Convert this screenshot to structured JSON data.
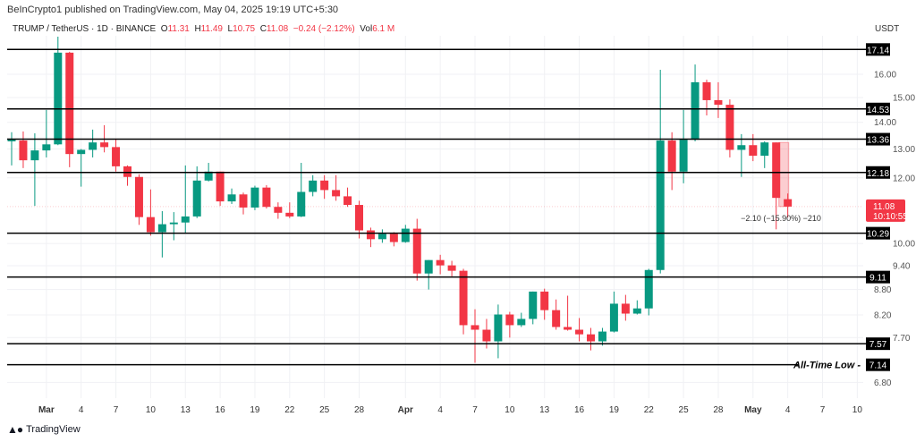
{
  "header": {
    "published": "BeInCrypto1 published on TradingView.com, May 04, 2025 19:19 UTC+5:30",
    "symbol": "TRUMP / TetherUS · 1D · BINANCE",
    "o_label": "O",
    "o": "11.31",
    "h_label": "H",
    "h": "11.49",
    "l_label": "L",
    "l": "10.75",
    "c_label": "C",
    "c": "11.08",
    "change": "−0.24 (−2.12%)",
    "vol_label": "Vol",
    "vol": "6.1 M",
    "currency": "USDT"
  },
  "footer": {
    "brand": "TradingView",
    "logo_text": "17"
  },
  "colors": {
    "up": "#089981",
    "down": "#f23645",
    "level": "#000000"
  },
  "current_price": {
    "value": "11.08",
    "countdown": "10:10:55"
  },
  "measure_label": "−2.10 (−15.90%) −210",
  "chart_data": {
    "type": "candlestick",
    "title": "TRUMP / TetherUS · 1D · BINANCE",
    "ylabel": "USDT",
    "yscale": "log",
    "ylim": [
      6.5,
      18.5
    ],
    "start_date": "2025-02-26",
    "x_ticks": [
      "Mar",
      "4",
      "7",
      "10",
      "13",
      "16",
      "19",
      "22",
      "25",
      "28",
      "Apr",
      "4",
      "7",
      "10",
      "13",
      "16",
      "19",
      "22",
      "25",
      "28",
      "May",
      "4",
      "7",
      "10"
    ],
    "x_tick_days": [
      3,
      6,
      9,
      12,
      15,
      18,
      21,
      24,
      27,
      30,
      34,
      37,
      40,
      43,
      46,
      49,
      52,
      55,
      58,
      61,
      64,
      67,
      70,
      73
    ],
    "y_ticks": [
      "16.00",
      "15.00",
      "14.00",
      "13.00",
      "12.00",
      "10.00",
      "9.40",
      "8.80",
      "8.20",
      "7.70",
      "6.80"
    ],
    "levels": [
      {
        "value": 17.14,
        "label": "17.14"
      },
      {
        "value": 14.53,
        "label": "14.53"
      },
      {
        "value": 13.36,
        "label": "13.36"
      },
      {
        "value": 12.18,
        "label": "12.18"
      },
      {
        "value": 10.29,
        "label": "10.29"
      },
      {
        "value": 9.11,
        "label": "9.11"
      },
      {
        "value": 7.57,
        "label": "7.57"
      },
      {
        "value": 7.14,
        "label": "7.14",
        "annotation": "All-Time Low"
      }
    ],
    "ohlc": [
      [
        13.28,
        13.62,
        12.42,
        13.34
      ],
      [
        13.31,
        13.65,
        12.33,
        12.6
      ],
      [
        12.6,
        13.58,
        11.1,
        12.95
      ],
      [
        12.95,
        14.49,
        12.7,
        13.17
      ],
      [
        13.17,
        17.76,
        13.14,
        16.99
      ],
      [
        16.99,
        17.03,
        12.36,
        12.82
      ],
      [
        12.82,
        13.0,
        11.71,
        12.97
      ],
      [
        12.97,
        13.72,
        12.7,
        13.24
      ],
      [
        13.24,
        13.89,
        12.88,
        13.07
      ],
      [
        13.07,
        13.38,
        12.21,
        12.39
      ],
      [
        12.39,
        12.42,
        11.74,
        12.03
      ],
      [
        12.03,
        12.12,
        10.53,
        10.76
      ],
      [
        10.76,
        11.62,
        10.22,
        10.32
      ],
      [
        10.32,
        10.94,
        9.62,
        10.55
      ],
      [
        10.55,
        10.91,
        10.09,
        10.6
      ],
      [
        10.6,
        12.42,
        10.3,
        10.78
      ],
      [
        10.78,
        12.39,
        10.73,
        11.91
      ],
      [
        11.91,
        12.51,
        11.88,
        12.21
      ],
      [
        12.21,
        12.21,
        11.1,
        11.24
      ],
      [
        11.24,
        11.65,
        11.16,
        11.46
      ],
      [
        11.46,
        11.52,
        10.84,
        11.05
      ],
      [
        11.05,
        11.74,
        10.97,
        11.68
      ],
      [
        11.68,
        11.76,
        11.02,
        11.07
      ],
      [
        11.07,
        11.21,
        10.71,
        10.89
      ],
      [
        10.89,
        11.21,
        10.73,
        10.78
      ],
      [
        10.78,
        12.51,
        10.76,
        11.54
      ],
      [
        11.54,
        12.09,
        11.4,
        11.91
      ],
      [
        11.91,
        12.09,
        11.32,
        11.6
      ],
      [
        11.6,
        12.09,
        11.26,
        11.4
      ],
      [
        11.4,
        11.68,
        11.07,
        11.13
      ],
      [
        11.13,
        11.26,
        10.14,
        10.37
      ],
      [
        10.37,
        10.45,
        9.9,
        10.12
      ],
      [
        10.12,
        10.4,
        10.02,
        10.27
      ],
      [
        10.27,
        10.32,
        9.92,
        10.04
      ],
      [
        10.04,
        10.53,
        10.02,
        10.42
      ],
      [
        10.42,
        10.71,
        9.02,
        9.2
      ],
      [
        9.2,
        9.55,
        8.8,
        9.55
      ],
      [
        9.55,
        9.69,
        9.18,
        9.41
      ],
      [
        9.41,
        9.53,
        9.13,
        9.27
      ],
      [
        9.27,
        9.32,
        7.77,
        7.97
      ],
      [
        7.97,
        8.33,
        7.18,
        7.87
      ],
      [
        7.87,
        8.11,
        7.47,
        7.62
      ],
      [
        7.62,
        8.44,
        7.27,
        8.21
      ],
      [
        8.21,
        8.27,
        7.7,
        7.97
      ],
      [
        7.97,
        8.25,
        7.93,
        8.11
      ],
      [
        8.11,
        8.75,
        7.99,
        8.75
      ],
      [
        8.75,
        8.82,
        8.09,
        8.31
      ],
      [
        8.31,
        8.56,
        7.87,
        7.93
      ],
      [
        7.93,
        8.65,
        7.85,
        7.87
      ],
      [
        7.87,
        8.13,
        7.62,
        7.77
      ],
      [
        7.77,
        7.91,
        7.43,
        7.62
      ],
      [
        7.62,
        7.91,
        7.53,
        7.83
      ],
      [
        7.83,
        8.75,
        7.81,
        8.46
      ],
      [
        8.46,
        8.67,
        8.07,
        8.23
      ],
      [
        8.23,
        8.54,
        8.21,
        8.35
      ],
      [
        8.35,
        9.32,
        8.19,
        9.29
      ],
      [
        9.29,
        16.2,
        9.2,
        13.31
      ],
      [
        13.31,
        13.62,
        11.6,
        12.21
      ],
      [
        12.21,
        14.49,
        11.82,
        13.34
      ],
      [
        13.34,
        16.44,
        13.28,
        15.65
      ],
      [
        15.65,
        15.76,
        14.27,
        14.89
      ],
      [
        14.89,
        15.65,
        14.17,
        14.7
      ],
      [
        14.7,
        14.92,
        12.7,
        12.97
      ],
      [
        12.97,
        13.55,
        12.03,
        13.14
      ],
      [
        13.14,
        13.55,
        12.57,
        12.76
      ],
      [
        12.76,
        13.28,
        12.33,
        13.24
      ],
      [
        13.24,
        13.24,
        10.4,
        11.35
      ],
      [
        11.31,
        11.49,
        10.75,
        11.08
      ]
    ]
  }
}
